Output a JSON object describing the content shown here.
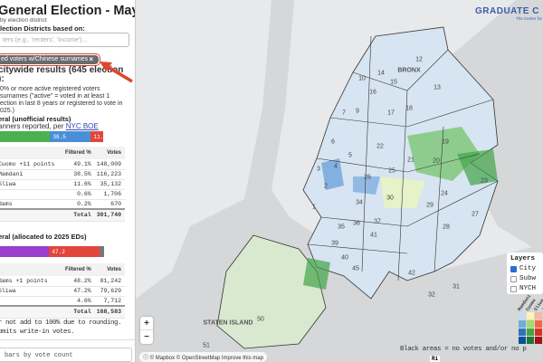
{
  "header": {
    "title": "General Election - Mayor",
    "subtitle": "by election district",
    "based_on": "lection Districts based on:"
  },
  "filter": {
    "placeholder": "ters (e.g., 'renters', 'income')...",
    "chip": "ed voters w/Chinese surnames",
    "chip_close": "×"
  },
  "citywide": {
    "heading": "citywide results (645 election",
    "heading2": "):",
    "desc": [
      "0% or more active registered voters",
      "surnames (\"active\" = voted in at least 1",
      "ection in last 8 years or registered to vote in",
      "025.)"
    ]
  },
  "general": {
    "title": "eral (unofficial results)",
    "reported": "anners reported, per ",
    "link": "NYC BOE",
    "bar": [
      {
        "label": "",
        "pct": 49.1,
        "color": "#4caf50"
      },
      {
        "label": "38.5",
        "pct": 38.5,
        "color": "#4a8fd6"
      },
      {
        "label": "11.6",
        "pct": 11.6,
        "color": "#e2463b"
      }
    ],
    "headers": [
      "Filtered %",
      "Votes"
    ],
    "rows": [
      {
        "name": "Cuomo +11 points",
        "pct": "49.1%",
        "votes": "148,009"
      },
      {
        "name": "Mamdani",
        "pct": "38.5%",
        "votes": "116,223"
      },
      {
        "name": "Sliwa",
        "pct": "11.6%",
        "votes": "35,132"
      },
      {
        "name": "",
        "pct": "0.6%",
        "votes": "1,706"
      },
      {
        "name": "dams",
        "pct": "0.2%",
        "votes": "670"
      }
    ],
    "total": {
      "label": "Total",
      "votes": "301,740"
    }
  },
  "primary": {
    "title": "eral (allocated to 2025 EDs)",
    "bar": [
      {
        "label": "",
        "pct": 48.2,
        "color": "#9b3fcf"
      },
      {
        "label": "47.2",
        "pct": 47.2,
        "color": "#e2463b"
      },
      {
        "label": "",
        "pct": 4.6,
        "color": "#777777"
      }
    ],
    "headers": [
      "Filtered %",
      "Votes"
    ],
    "rows": [
      {
        "name": "dams +1 points",
        "pct": "48.2%",
        "votes": "81,242"
      },
      {
        "name": "Sliwa",
        "pct": "47.2%",
        "votes": "79,629"
      },
      {
        "name": "",
        "pct": "4.6%",
        "votes": "7,712"
      }
    ],
    "total": {
      "label": "Total",
      "votes": "168,583"
    }
  },
  "notes": [
    "r not add to 100% due to rounding.",
    "omits write-in votes."
  ],
  "bar_sort": "bars by vote count",
  "map": {
    "logo": "GRADUATE C",
    "logo_sub": "The Center for",
    "boroughs": {
      "bronx": "BRONX",
      "staten": "STATEN ISLAND"
    },
    "districts": [
      "12",
      "14",
      "10",
      "15",
      "13",
      "16",
      "9",
      "7",
      "17",
      "18",
      "6",
      "22",
      "19",
      "5",
      "21",
      "20",
      "3",
      "4",
      "25",
      "26",
      "23",
      "2",
      "24",
      "30",
      "1",
      "34",
      "29",
      "27",
      "36",
      "35",
      "37",
      "28",
      "41",
      "39",
      "40",
      "45",
      "42",
      "32",
      "31",
      "51",
      "50"
    ],
    "layers": {
      "title": "Layers",
      "items": [
        {
          "label": "City",
          "checked": true
        },
        {
          "label": "Subw",
          "checked": false
        },
        {
          "label": "NYCH",
          "checked": false
        }
      ]
    },
    "legend_headers": [
      "Mamdani",
      "Cuomo",
      "Sliwa",
      "Ad"
    ],
    "legend_colors": [
      [
        "#c6dbef",
        "#fff3b0",
        "#f7b7a3",
        "#e6d0f0"
      ],
      [
        "#6baed6",
        "#a6d96a",
        "#ef6548",
        "#c08ad8"
      ],
      [
        "#3173b8",
        "#41a447",
        "#d7301f",
        "#9b3fcf"
      ],
      [
        "#08519c",
        "#1a7a33",
        "#a50f15",
        "#6a1b9a"
      ]
    ],
    "blank_note": "Black areas = no votes and/or no p",
    "zoom_in": "+",
    "zoom_out": "−",
    "attribution": "© Mapbox © OpenStreetMap Improve this map",
    "bottom_right": "Ri"
  }
}
